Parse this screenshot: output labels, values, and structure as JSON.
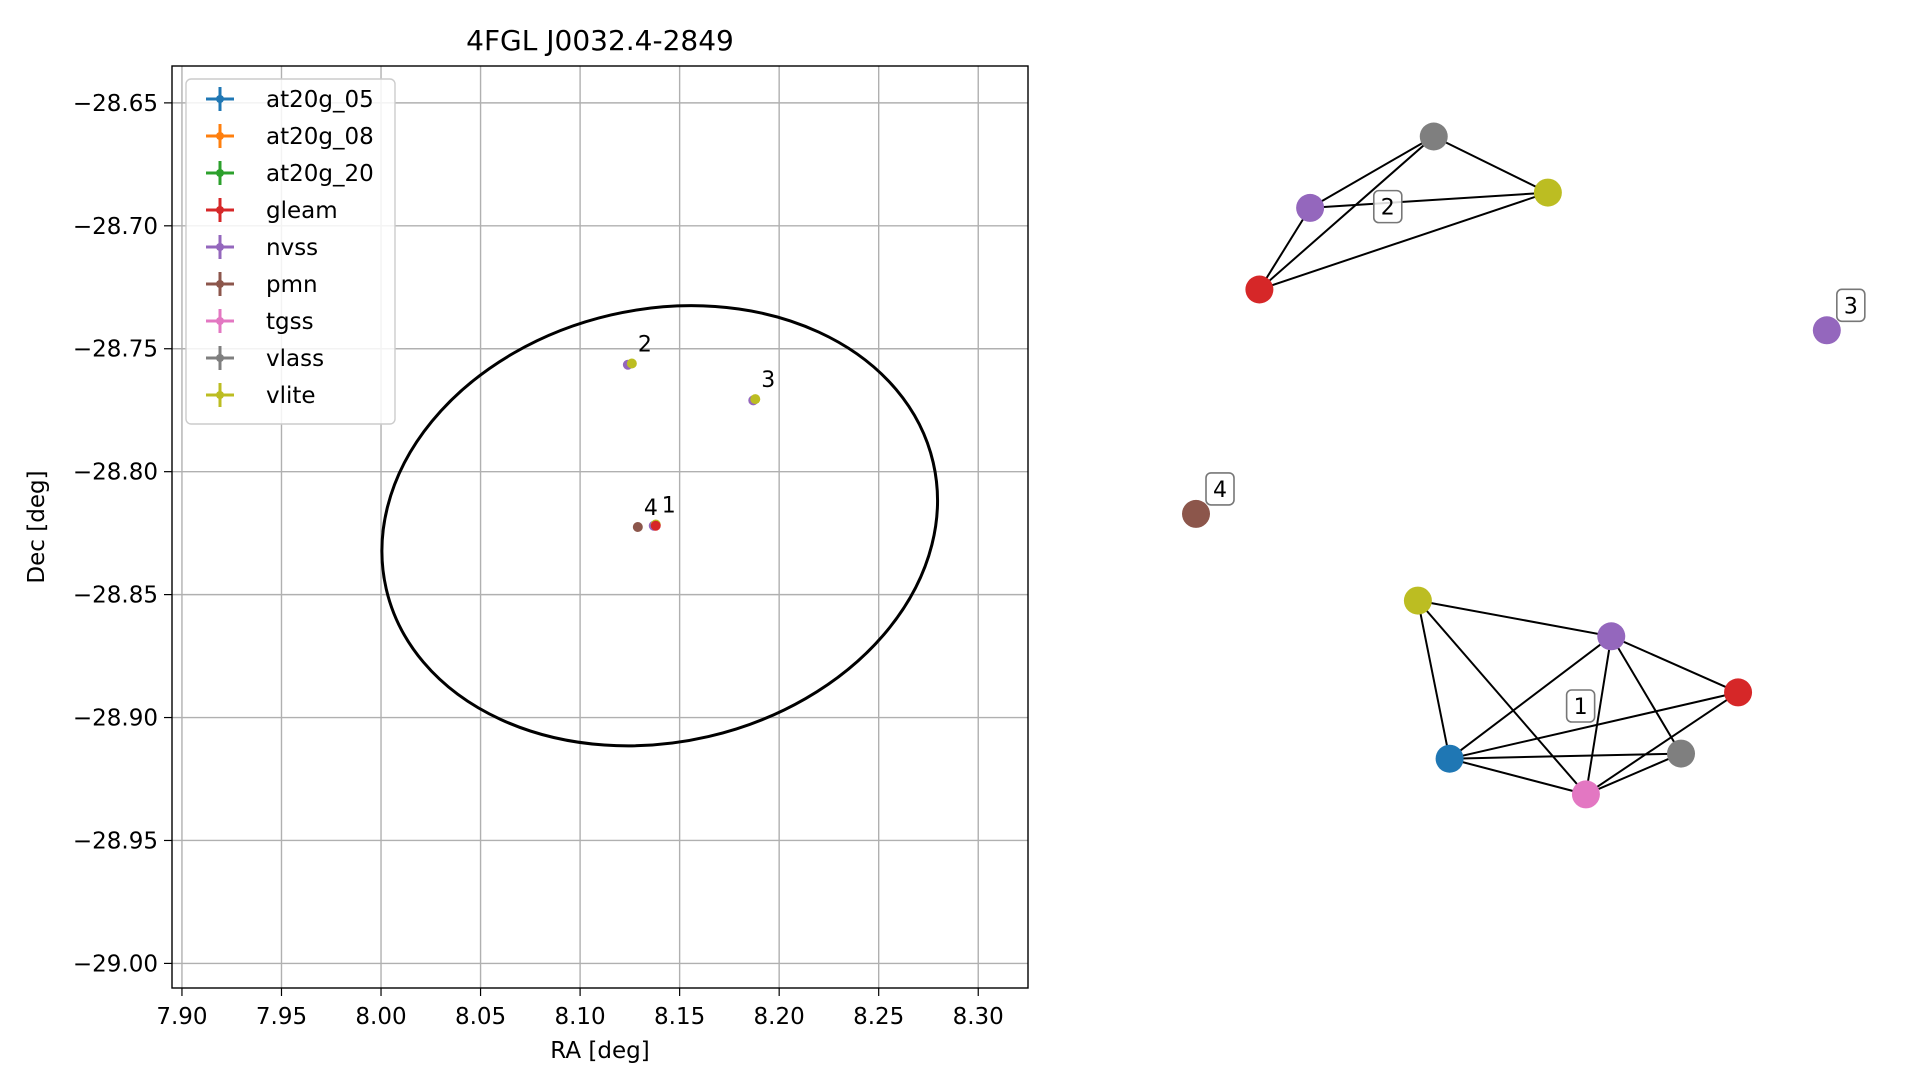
{
  "colors": {
    "at20g_05": "#1f77b4",
    "at20g_08": "#ff7f0e",
    "at20g_20": "#2ca02c",
    "gleam": "#d62728",
    "nvss": "#9467bd",
    "pmn": "#8c564b",
    "tgss": "#e377c2",
    "vlass": "#7f7f7f",
    "vlite": "#bcbd22"
  },
  "chart_data": [
    {
      "type": "scatter",
      "title": "4FGL J0032.4-2849",
      "xlabel": "RA [deg]",
      "ylabel": "Dec [deg]",
      "xlim": [
        7.895,
        8.325
      ],
      "ylim": [
        -29.01,
        -28.635
      ],
      "xticks": [
        7.9,
        7.95,
        8.0,
        8.05,
        8.1,
        8.15,
        8.2,
        8.25,
        8.3
      ],
      "xtick_labels": [
        "7.90",
        "7.95",
        "8.00",
        "8.05",
        "8.10",
        "8.15",
        "8.20",
        "8.25",
        "8.30"
      ],
      "yticks": [
        -28.65,
        -28.7,
        -28.75,
        -28.8,
        -28.85,
        -28.9,
        -28.95,
        -29.0
      ],
      "ytick_labels": [
        "−28.65",
        "−28.70",
        "−28.75",
        "−28.80",
        "−28.85",
        "−28.90",
        "−28.95",
        "−29.00"
      ],
      "grid": true,
      "legend_position": "top-left",
      "legend": [
        "at20g_05",
        "at20g_08",
        "at20g_20",
        "gleam",
        "nvss",
        "pmn",
        "tgss",
        "vlass",
        "vlite"
      ],
      "ellipse": {
        "center_ra": 8.14,
        "center_dec": -28.822,
        "semi_major_deg": 0.141,
        "semi_minor_deg": 0.088,
        "angle_deg": -13
      },
      "points": [
        {
          "catalog": "nvss",
          "ra": 8.124,
          "dec": -28.7565
        },
        {
          "catalog": "vlite",
          "ra": 8.126,
          "dec": -28.756
        },
        {
          "catalog": "nvss",
          "ra": 8.187,
          "dec": -28.771
        },
        {
          "catalog": "vlite",
          "ra": 8.188,
          "dec": -28.7705
        },
        {
          "catalog": "pmn",
          "ra": 8.129,
          "dec": -28.8225
        },
        {
          "catalog": "nvss",
          "ra": 8.137,
          "dec": -28.822
        },
        {
          "catalog": "vlite",
          "ra": 8.138,
          "dec": -28.8215
        },
        {
          "catalog": "gleam",
          "ra": 8.138,
          "dec": -28.822
        }
      ],
      "annotations": [
        {
          "text": "2",
          "ra": 8.126,
          "dec": -28.756
        },
        {
          "text": "3",
          "ra": 8.188,
          "dec": -28.7705
        },
        {
          "text": "4",
          "ra": 8.129,
          "dec": -28.8225
        },
        {
          "text": "1",
          "ra": 8.138,
          "dec": -28.8215
        }
      ]
    },
    {
      "type": "graph",
      "groups": [
        {
          "label": "2",
          "nodes": [
            {
              "catalog": "vlass",
              "pos": [
                0.375,
                0.075
              ]
            },
            {
              "catalog": "nvss",
              "pos": [
                0.18,
                0.145
              ]
            },
            {
              "catalog": "vlite",
              "pos": [
                0.555,
                0.13
              ]
            },
            {
              "catalog": "gleam",
              "pos": [
                0.1,
                0.225
              ]
            }
          ],
          "edges": [
            [
              0,
              1
            ],
            [
              0,
              2
            ],
            [
              1,
              2
            ],
            [
              1,
              3
            ],
            [
              0,
              3
            ],
            [
              2,
              3
            ]
          ]
        },
        {
          "label": "3",
          "nodes": [
            {
              "catalog": "nvss",
              "pos": [
                0.995,
                0.265
              ]
            }
          ],
          "edges": []
        },
        {
          "label": "4",
          "nodes": [
            {
              "catalog": "pmn",
              "pos": [
                0.0,
                0.445
              ]
            }
          ],
          "edges": []
        },
        {
          "label": "1",
          "nodes": [
            {
              "catalog": "vlite",
              "pos": [
                0.35,
                0.53
              ]
            },
            {
              "catalog": "nvss",
              "pos": [
                0.655,
                0.565
              ]
            },
            {
              "catalog": "gleam",
              "pos": [
                0.855,
                0.62
              ]
            },
            {
              "catalog": "vlass",
              "pos": [
                0.765,
                0.68
              ]
            },
            {
              "catalog": "at20g_05",
              "pos": [
                0.4,
                0.685
              ]
            },
            {
              "catalog": "tgss",
              "pos": [
                0.615,
                0.72
              ]
            }
          ],
          "edges": [
            [
              0,
              1
            ],
            [
              0,
              4
            ],
            [
              0,
              5
            ],
            [
              1,
              2
            ],
            [
              1,
              3
            ],
            [
              1,
              4
            ],
            [
              1,
              5
            ],
            [
              2,
              4
            ],
            [
              2,
              5
            ],
            [
              3,
              4
            ],
            [
              3,
              5
            ],
            [
              4,
              5
            ]
          ]
        }
      ]
    }
  ]
}
